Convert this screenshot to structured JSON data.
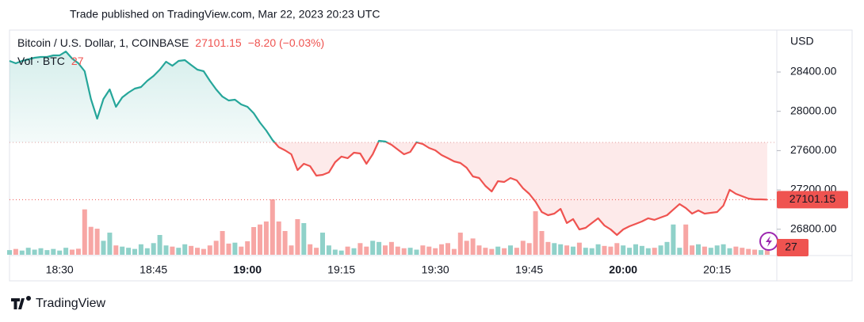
{
  "chart_data": {
    "type": "baseline",
    "published": "Trade published on TradingView.com, Mar 22, 2023 20:23 UTC",
    "change": "−8.20 (−0.03%)",
    "currency": "USD",
    "brand": "TradingView",
    "categories": [
      null,
      null,
      null,
      null,
      null,
      null,
      null,
      null,
      "18:30",
      null,
      null,
      null,
      null,
      null,
      null,
      null,
      null,
      null,
      null,
      null,
      null,
      null,
      null,
      "18:45",
      null,
      null,
      null,
      null,
      null,
      null,
      null,
      null,
      null,
      null,
      null,
      null,
      null,
      null,
      "19:00",
      null,
      null,
      null,
      null,
      null,
      null,
      null,
      null,
      null,
      null,
      null,
      null,
      null,
      null,
      "19:15",
      null,
      null,
      null,
      null,
      null,
      null,
      null,
      null,
      null,
      null,
      null,
      null,
      null,
      null,
      "19:30",
      null,
      null,
      null,
      null,
      null,
      null,
      null,
      null,
      null,
      null,
      null,
      null,
      null,
      null,
      "19:45",
      null,
      null,
      null,
      null,
      null,
      null,
      null,
      null,
      null,
      null,
      null,
      null,
      null,
      null,
      "20:00",
      null,
      null,
      null,
      null,
      null,
      null,
      null,
      null,
      null,
      null,
      null,
      null,
      null,
      null,
      "20:15",
      null,
      null,
      null,
      null,
      null,
      null,
      null,
      null
    ],
    "series": [
      {
        "name": "Bitcoin / U.S. Dollar, 1, COINBASE",
        "up_color": "#26a69a",
        "down_color": "#ef5350",
        "values": [
          28513,
          28489,
          28513,
          28529,
          28545,
          28553,
          28553,
          28569,
          28569,
          28609,
          28537,
          28489,
          28408,
          28126,
          27925,
          28126,
          28223,
          28046,
          28142,
          28191,
          28231,
          28247,
          28311,
          28360,
          28424,
          28505,
          28464,
          28513,
          28521,
          28472,
          28424,
          28408,
          28311,
          28223,
          28150,
          28110,
          28118,
          28070,
          28046,
          27981,
          27885,
          27804,
          27708,
          27635,
          27603,
          27563,
          27402,
          27466,
          27442,
          27345,
          27353,
          27378,
          27482,
          27539,
          27523,
          27579,
          27571,
          27466,
          27563,
          27700,
          27692,
          27659,
          27611,
          27563,
          27587,
          27684,
          27667,
          27627,
          27603,
          27555,
          27523,
          27490,
          27474,
          27426,
          27337,
          27321,
          27241,
          27184,
          27289,
          27281,
          27321,
          27297,
          27217,
          27160,
          27080,
          26975,
          26943,
          26959,
          27007,
          26863,
          26903,
          26798,
          26814,
          26863,
          26911,
          26838,
          26798,
          26741,
          26798,
          26830,
          26854,
          26879,
          26911,
          26895,
          26919,
          26943,
          27000,
          27056,
          27016,
          26959,
          26991,
          26959,
          26967,
          26975,
          27040,
          27201,
          27160,
          27136,
          27112,
          27104,
          27104,
          27101.15
        ]
      },
      {
        "name": "Vol · BTC",
        "up_color": "#8fd1c9",
        "down_color": "#f7a6a4",
        "values": [
          20,
          25,
          18,
          30,
          22,
          28,
          20,
          25,
          18,
          30,
          22,
          26,
          195,
          120,
          112,
          60,
          95,
          40,
          35,
          30,
          25,
          45,
          28,
          50,
          85,
          40,
          35,
          30,
          45,
          38,
          30,
          25,
          40,
          60,
          102,
          48,
          52,
          35,
          58,
          119,
          130,
          143,
          238,
          143,
          102,
          40,
          153,
          136,
          45,
          30,
          95,
          40,
          22,
          18,
          35,
          28,
          50,
          35,
          60,
          55,
          40,
          55,
          35,
          28,
          30,
          22,
          40,
          35,
          28,
          45,
          50,
          25,
          95,
          60,
          70,
          40,
          30,
          25,
          35,
          28,
          40,
          30,
          60,
          50,
          187,
          102,
          55,
          50,
          45,
          40,
          35,
          52,
          30,
          28,
          45,
          38,
          35,
          50,
          40,
          30,
          45,
          38,
          28,
          30,
          40,
          55,
          130,
          30,
          130,
          40,
          45,
          35,
          30,
          40,
          45,
          28,
          35,
          30,
          25,
          22,
          20,
          27
        ]
      }
    ],
    "baseline": 27684,
    "ylim": [
      26532,
      28827
    ],
    "yticks": [
      {
        "value": 26800,
        "label": "26800.00"
      },
      {
        "value": 27200,
        "label": "27200.00"
      },
      {
        "value": 27600,
        "label": "27600.00"
      },
      {
        "value": 28000,
        "label": "28000.00"
      },
      {
        "value": 28400,
        "label": "28400.00"
      }
    ]
  }
}
